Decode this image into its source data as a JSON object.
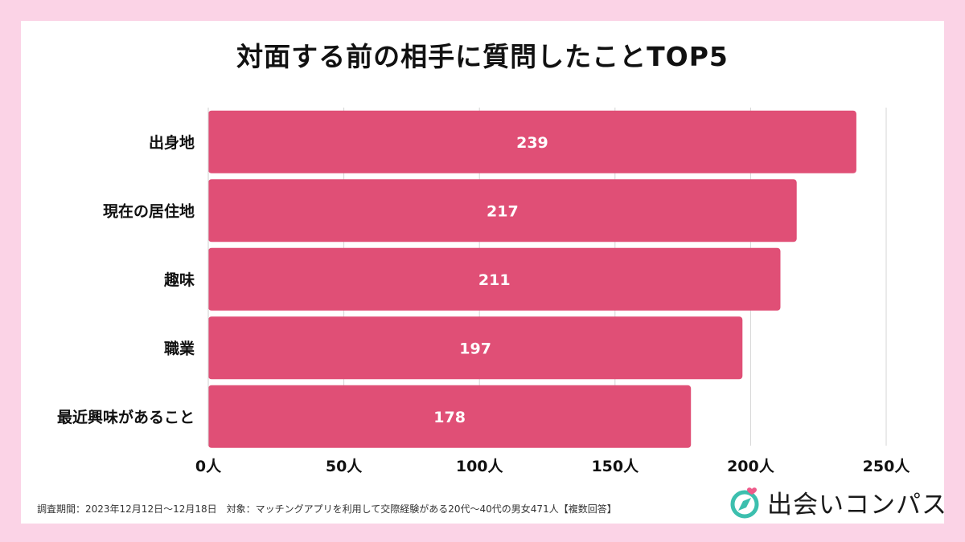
{
  "title": "対面する前の相手に質問したことTOP5",
  "chart_data": {
    "type": "bar",
    "orientation": "horizontal",
    "categories": [
      "出身地",
      "現在の居住地",
      "趣味",
      "職業",
      "最近興味があること"
    ],
    "values": [
      239,
      217,
      211,
      197,
      178
    ],
    "value_labels": [
      "239",
      "217",
      "211",
      "197",
      "178"
    ],
    "xlim": [
      0,
      250
    ],
    "ticks": [
      0,
      50,
      100,
      150,
      200,
      250
    ],
    "tick_labels": [
      "0人",
      "50人",
      "100人",
      "150人",
      "200人",
      "250人"
    ],
    "grid": true,
    "bar_color": "#e04f76"
  },
  "footnote": "調査期間：2023年12月12日〜12月18日　対象：マッチングアプリを利用して交際経験がある20代〜40代の男女471人【複数回答】",
  "logo": {
    "text": "出会いコンパス",
    "icon": "compass-heart-icon"
  },
  "colors": {
    "background": "#fbd3e6",
    "card": "#ffffff",
    "bar": "#e04f76",
    "grid": "#d4d4d4",
    "logo_teal": "#3cbfae"
  }
}
